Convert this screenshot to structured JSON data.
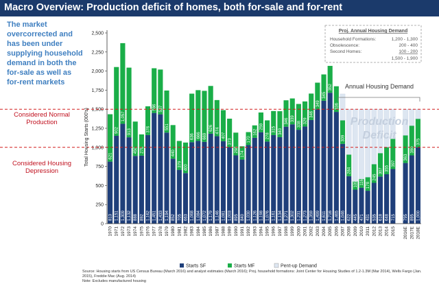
{
  "title": "Macro Overview: Production deficit of homes, both for-sale and for-rent",
  "callout": "The market overcorrected and has been under supplying household demand in both the for-sale as well as for-rent markets",
  "labels": {
    "normal": "Considered Normal Production",
    "depression": "Considered Housing Depression",
    "annual_demand": "Annual Housing Demand",
    "deficit": "Production Deficit"
  },
  "demand_box": {
    "header": "Proj. Annual Housing Demand",
    "rows": [
      {
        "label": "Household Formations:",
        "value": "1,200 - 1,300"
      },
      {
        "label": "Obsolescence:",
        "value": "200 - 400"
      },
      {
        "label": "Second Homes:",
        "value": "100 - 200"
      }
    ],
    "total": "1,500 - 1,900"
  },
  "footnotes": [
    "Source: Housing starts from US Census Bureau (March 2016) and analyst estimates (March 2016); Proj. household formations: Joint Center for Housing Studies of 1.2-1.3M (Mar 2014), Wells Fargo (Jan. 2015), Freddie Mac (Aug. 2014)",
    "Note: Excludes manufactured housing"
  ],
  "colors": {
    "sf": "#1f3f7a",
    "mf": "#1aae48",
    "pent": "#dde6f1",
    "threshold": "#d11a1a",
    "title_bg": "#1b3a6b",
    "callout": "#3f7fc0"
  },
  "chart_data": {
    "type": "bar",
    "stacked": true,
    "ylabel": "Total Housing Starts (000's)",
    "ylim": [
      0,
      2500
    ],
    "yticks": [
      0,
      250,
      500,
      750,
      1000,
      1250,
      1500,
      1750,
      2000,
      2250,
      2500
    ],
    "ytick_labels": [
      "0",
      "250",
      "500",
      "750",
      "1,000",
      "1,250",
      "1,500",
      "1,750",
      "2,000",
      "2,250",
      "2,500"
    ],
    "thresholds": [
      1500,
      1000
    ],
    "categories": [
      "1970",
      "1971",
      "1972",
      "1973",
      "1974",
      "1975",
      "1976",
      "1977",
      "1978",
      "1979",
      "1980",
      "1981",
      "1982",
      "1983",
      "1984",
      "1985",
      "1986",
      "1987",
      "1988",
      "1989",
      "1990",
      "1991",
      "1992",
      "1993",
      "1994",
      "1995",
      "1996",
      "1997",
      "1998",
      "1999",
      "2000",
      "2001",
      "2002",
      "2003",
      "2004",
      "2005",
      "2006",
      "2007",
      "2008",
      "2009",
      "2010",
      "2011",
      "2012",
      "2013",
      "2014",
      "2015",
      "",
      "2016E",
      "2017E",
      "2018E"
    ],
    "series": [
      {
        "name": "Starts SF",
        "values": [
          813,
          1151,
          1309,
          1132,
          888,
          892,
          1162,
          1451,
          1433,
          1194,
          852,
          705,
          663,
          1068,
          1084,
          1072,
          1179,
          1146,
          1081,
          1003,
          895,
          840,
          1030,
          1126,
          1198,
          1076,
          1161,
          1134,
          1271,
          1302,
          1231,
          1273,
          1359,
          1499,
          1611,
          1716,
          1465,
          1046,
          622,
          445,
          471,
          431,
          535,
          618,
          648,
          715,
          null,
          795,
          895,
          1000
        ],
        "labels": [
          "813",
          "1,151",
          "1,309",
          "1,132",
          "888",
          "892",
          "1,162",
          "1,451",
          "1,433",
          "1,194",
          "852",
          "705",
          "663",
          "1,068",
          "1,084",
          "1,072",
          "1,179",
          "1,146",
          "1,081",
          "1,003",
          "895",
          "840",
          "1,030",
          "1,126",
          "1,198",
          "1,076",
          "1,161",
          "1,134",
          "1,271",
          "1,302",
          "1,231",
          "1,273",
          "1,359",
          "1,499",
          "1,611",
          "1,716",
          "1,465",
          "1,046",
          "622",
          "445",
          "471",
          "431",
          "535",
          "618",
          "648",
          "715",
          "",
          "795",
          "895",
          "1,000"
        ]
      },
      {
        "name": "Starts MF",
        "values": [
          621,
          902,
          1057,
          913,
          450,
          278,
          376,
          586,
          587,
          551,
          440,
          379,
          400,
          636,
          666,
          669,
          626,
          474,
          407,
          373,
          298,
          174,
          170,
          162,
          259,
          278,
          315,
          340,
          346,
          339,
          338,
          329,
          346,
          349,
          345,
          352,
          336,
          309,
          284,
          109,
          116,
          178,
          245,
          307,
          355,
          397,
          null,
          363,
          390,
          375
        ],
        "labels": [
          "621",
          "902",
          "1,057",
          "913",
          "450",
          "278",
          "376",
          "586",
          "587",
          "551",
          "440",
          "379",
          "400",
          "636",
          "666",
          "669",
          "626",
          "474",
          "407",
          "373",
          "298",
          "174",
          "170",
          "162",
          "259",
          "278",
          "315",
          "340",
          "346",
          "339",
          "338",
          "329",
          "346",
          "349",
          "345",
          "352",
          "336",
          "309",
          "284",
          "109",
          "116",
          "178",
          "245",
          "307",
          "355",
          "397",
          "",
          "363",
          "390",
          "375"
        ]
      },
      {
        "name": "Pent-up Demand",
        "values": [
          0,
          0,
          0,
          0,
          0,
          0,
          0,
          0,
          0,
          0,
          0,
          0,
          0,
          0,
          0,
          0,
          0,
          0,
          0,
          0,
          0,
          0,
          0,
          0,
          0,
          0,
          0,
          0,
          0,
          0,
          0,
          0,
          0,
          0,
          0,
          0,
          0,
          345,
          594,
          946,
          913,
          891,
          720,
          575,
          497,
          388,
          null,
          342,
          215,
          125
        ]
      }
    ],
    "legend": [
      "Starts SF",
      "Starts MF",
      "Pent-up Demand"
    ],
    "legend_position": "bottom",
    "grid": false
  }
}
